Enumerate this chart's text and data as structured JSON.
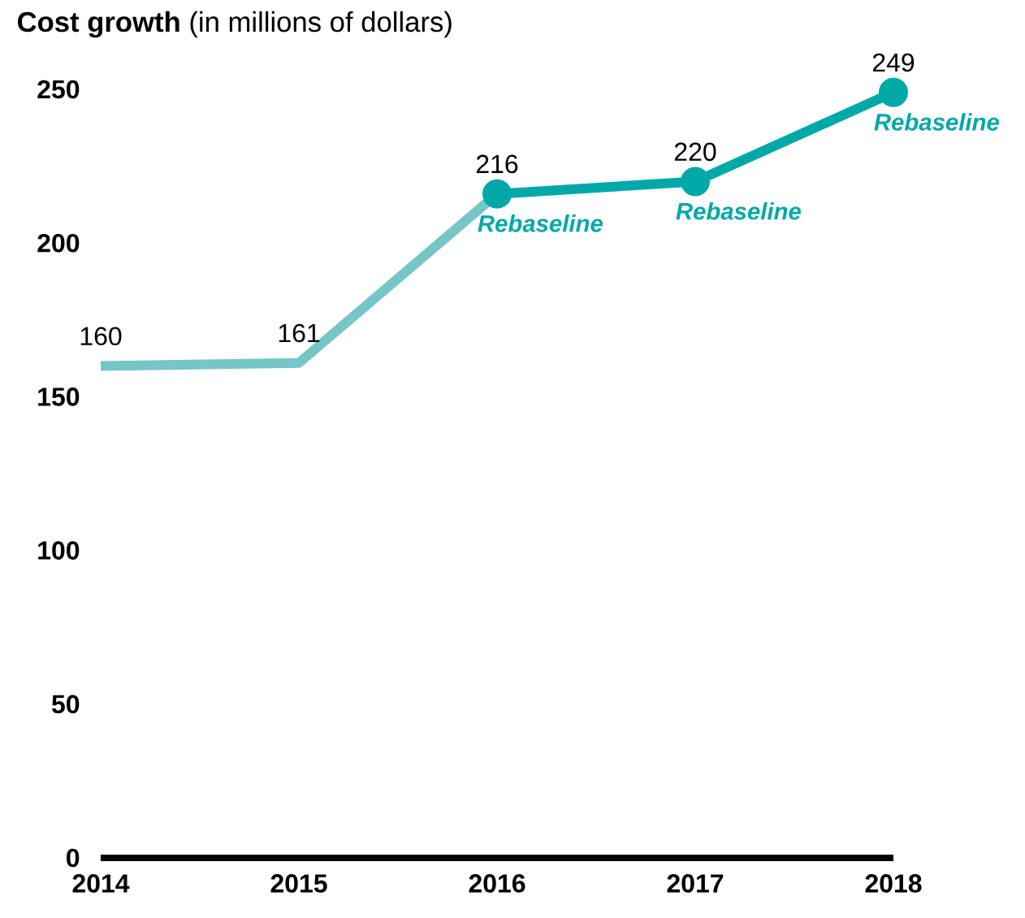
{
  "chart_data": {
    "type": "line",
    "title": "**Cost growth** (in millions of dollars)",
    "categories": [
      "2014",
      "2015",
      "2016",
      "2017",
      "2018"
    ],
    "series": [
      {
        "color": "#76c5c7",
        "values": [
          160,
          161,
          216,
          null,
          null
        ],
        "marker": "none",
        "value_labels": [
          "160",
          "161",
          null,
          null,
          null
        ]
      },
      {
        "color": "#00a9a8",
        "values": [
          null,
          null,
          216,
          220,
          249
        ],
        "marker": "circle",
        "value_labels": [
          null,
          null,
          "216",
          "220",
          "249"
        ]
      }
    ],
    "ylim": [
      0,
      250
    ],
    "yticks": [
      0,
      50,
      100,
      150,
      200,
      250
    ],
    "annotations": [
      {
        "text": "Rebaseline",
        "x": "2016",
        "y": 216
      },
      {
        "text": "Rebaseline",
        "x": "2017",
        "y": 220
      },
      {
        "text": "Rebaseline",
        "x": "2018",
        "y": 249
      }
    ],
    "grid": false,
    "line_style": "solid"
  }
}
